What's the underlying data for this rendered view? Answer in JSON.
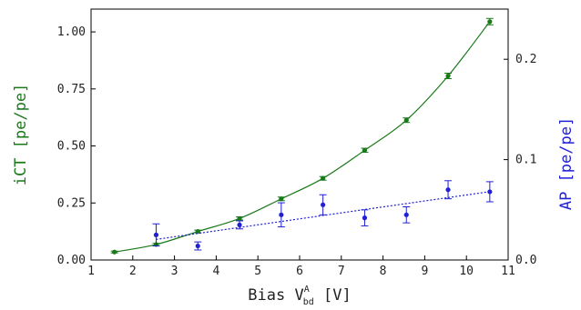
{
  "chart_data": {
    "type": "scatter",
    "xlabel": {
      "prefix": "Bias ",
      "symbol": "V",
      "superscript": "A",
      "subscript": "bd",
      "suffix": " [V]"
    },
    "ylabel_left": "iCT [pe/pe]",
    "ylabel_right": "AP [pe/pe]",
    "xlim": [
      1,
      11
    ],
    "ylim_left": [
      0,
      1.1
    ],
    "ylim_right": [
      0,
      0.25
    ],
    "xticks": [
      1,
      2,
      3,
      4,
      5,
      6,
      7,
      8,
      9,
      10,
      11
    ],
    "yticks_left": [
      "0.00",
      "0.25",
      "0.50",
      "0.75",
      "1.00"
    ],
    "yticks_right": [
      "0.0",
      "0.1",
      "0.2"
    ],
    "grid": false,
    "legend": "none",
    "series": [
      {
        "axis": "left",
        "color": "#1a7a1a",
        "line": "solid",
        "x": [
          1.56,
          2.56,
          3.56,
          4.56,
          5.56,
          6.56,
          7.56,
          8.56,
          9.56,
          10.56
        ],
        "y": [
          0.035,
          0.068,
          0.125,
          0.182,
          0.268,
          0.358,
          0.481,
          0.613,
          0.807,
          1.045
        ],
        "err": [
          0.004,
          0.005,
          0.006,
          0.007,
          0.008,
          0.008,
          0.009,
          0.01,
          0.012,
          0.014
        ]
      },
      {
        "axis": "right",
        "color": "#1f1fd6",
        "line": "dotted",
        "x": [
          2.56,
          3.56,
          4.56,
          5.56,
          6.56,
          7.56,
          8.56,
          9.56,
          10.56
        ],
        "y": [
          0.025,
          0.014,
          0.035,
          0.045,
          0.055,
          0.042,
          0.045,
          0.07,
          0.068
        ],
        "err": [
          0.011,
          0.004,
          0.004,
          0.012,
          0.01,
          0.008,
          0.008,
          0.009,
          0.01
        ]
      }
    ]
  }
}
